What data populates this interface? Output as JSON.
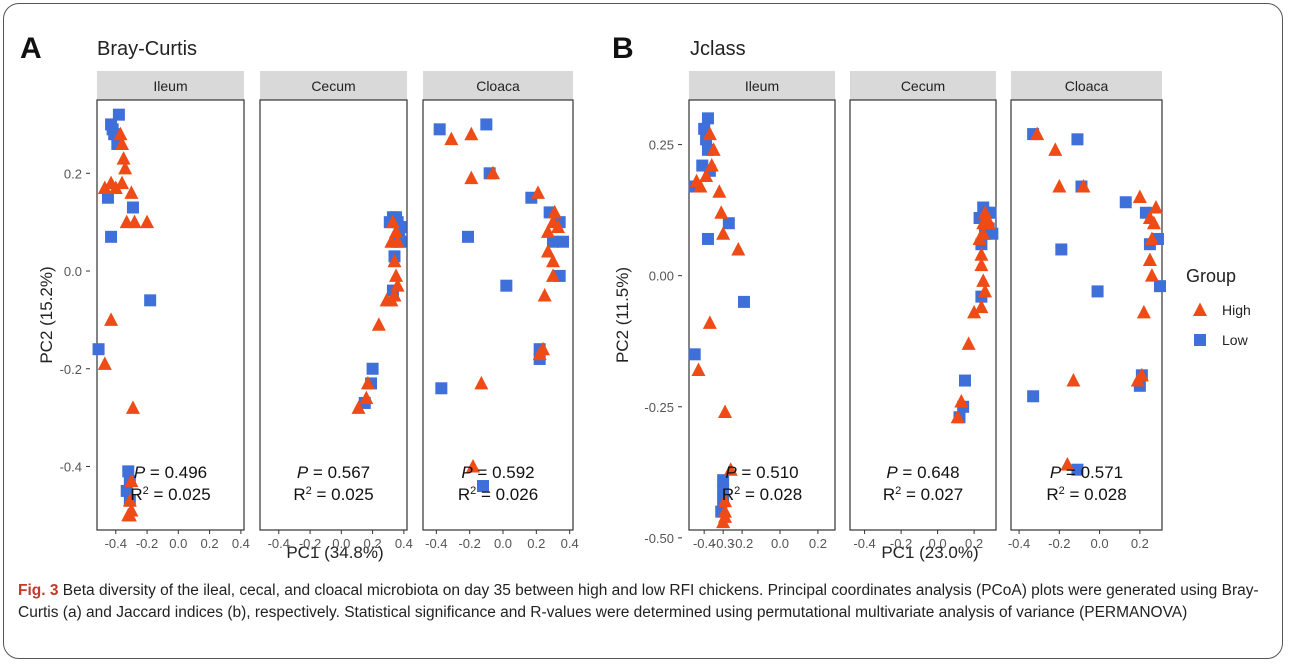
{
  "figure": {
    "caption_label": "Fig. 3",
    "caption_text": " Beta diversity of the ileal, cecal, and cloacal microbiota on day 35 between high and low RFI chickens. Principal coordinates analysis (PCoA) plots were generated using Bray-Curtis (a) and Jaccard indices (b), respectively. Statistical significance and R-values were determined using permutational multivariate analysis of variance (PERMANOVA)"
  },
  "colors": {
    "high": "#ee4b16",
    "low": "#3f6fd8",
    "strip": "#d9d9d9"
  },
  "legend": {
    "title": "Group",
    "items": [
      {
        "label": "High",
        "shape": "triangle",
        "color": "#ee4b16"
      },
      {
        "label": "Low",
        "shape": "square",
        "color": "#3f6fd8"
      }
    ]
  },
  "chart_data": [
    {
      "type": "scatter",
      "panel_letter": "A",
      "title": "Bray-Curtis",
      "xlabel": "PC1 (34.8%)",
      "ylabel": "PC2 (15.2%)",
      "ylim": [
        -0.53,
        0.35
      ],
      "yticks": [
        0.2,
        0.0,
        -0.2,
        -0.4
      ],
      "ytick_labels": [
        "0.2",
        "0.0",
        "-0.2",
        "-0.4"
      ],
      "grid": false,
      "facets": [
        {
          "name": "Ileum",
          "xlim": [
            -0.52,
            0.42
          ],
          "xticks": [
            -0.4,
            -0.2,
            0.0,
            0.2,
            0.4
          ],
          "xtick_labels": [
            "-0.4",
            "-0.2",
            "0.0",
            "0.2",
            "0.4"
          ],
          "p_value": "0.496",
          "r2": "0.025",
          "high": [
            [
              -0.37,
              0.28
            ],
            [
              -0.36,
              0.26
            ],
            [
              -0.35,
              0.23
            ],
            [
              -0.34,
              0.21
            ],
            [
              -0.36,
              0.18
            ],
            [
              -0.43,
              0.18
            ],
            [
              -0.47,
              0.17
            ],
            [
              -0.4,
              0.17
            ],
            [
              -0.3,
              0.16
            ],
            [
              -0.28,
              0.1
            ],
            [
              -0.2,
              0.1
            ],
            [
              -0.33,
              0.1
            ],
            [
              -0.43,
              -0.1
            ],
            [
              -0.47,
              -0.19
            ],
            [
              -0.29,
              -0.28
            ],
            [
              -0.3,
              -0.43
            ],
            [
              -0.31,
              -0.47
            ],
            [
              -0.3,
              -0.49
            ],
            [
              -0.31,
              -0.5
            ],
            [
              -0.32,
              -0.5
            ]
          ],
          "low": [
            [
              -0.38,
              0.32
            ],
            [
              -0.43,
              0.3
            ],
            [
              -0.42,
              0.29
            ],
            [
              -0.41,
              0.28
            ],
            [
              -0.39,
              0.26
            ],
            [
              -0.45,
              0.15
            ],
            [
              -0.29,
              0.13
            ],
            [
              -0.43,
              0.07
            ],
            [
              -0.18,
              -0.06
            ],
            [
              -0.51,
              -0.16
            ],
            [
              -0.32,
              -0.41
            ],
            [
              -0.31,
              -0.43
            ],
            [
              -0.33,
              -0.45
            ],
            [
              -0.31,
              -0.47
            ]
          ]
        },
        {
          "name": "Cecum",
          "xlim": [
            -0.52,
            0.42
          ],
          "xticks": [
            -0.4,
            -0.2,
            0.0,
            0.2,
            0.4
          ],
          "xtick_labels": [
            "-0.4",
            "-0.2",
            "0.0",
            "0.2",
            "0.4"
          ],
          "p_value": "0.567",
          "r2": "0.025",
          "high": [
            [
              0.33,
              0.1
            ],
            [
              0.35,
              0.08
            ],
            [
              0.36,
              0.06
            ],
            [
              0.32,
              0.06
            ],
            [
              0.34,
              0.02
            ],
            [
              0.35,
              -0.01
            ],
            [
              0.36,
              -0.03
            ],
            [
              0.34,
              -0.05
            ],
            [
              0.32,
              -0.06
            ],
            [
              0.29,
              -0.06
            ],
            [
              0.24,
              -0.11
            ],
            [
              0.17,
              -0.23
            ],
            [
              0.16,
              -0.26
            ],
            [
              0.11,
              -0.28
            ]
          ],
          "low": [
            [
              0.33,
              0.11
            ],
            [
              0.35,
              0.11
            ],
            [
              0.36,
              0.1
            ],
            [
              0.31,
              0.1
            ],
            [
              0.38,
              0.09
            ],
            [
              0.37,
              0.07
            ],
            [
              0.38,
              0.06
            ],
            [
              0.34,
              0.03
            ],
            [
              0.33,
              -0.04
            ],
            [
              0.2,
              -0.2
            ],
            [
              0.19,
              -0.23
            ],
            [
              0.15,
              -0.27
            ]
          ]
        },
        {
          "name": "Cloaca",
          "xlim": [
            -0.48,
            0.42
          ],
          "xticks": [
            -0.4,
            -0.2,
            0.0,
            0.2,
            0.4
          ],
          "xtick_labels": [
            "-0.4",
            "-0.2",
            "0.0",
            "0.2",
            "0.4"
          ],
          "p_value": "0.592",
          "r2": "0.026",
          "high": [
            [
              -0.31,
              0.27
            ],
            [
              -0.19,
              0.28
            ],
            [
              -0.19,
              0.19
            ],
            [
              -0.06,
              0.2
            ],
            [
              0.21,
              0.16
            ],
            [
              0.31,
              0.12
            ],
            [
              0.3,
              0.1
            ],
            [
              0.33,
              0.09
            ],
            [
              0.27,
              0.08
            ],
            [
              0.27,
              0.04
            ],
            [
              0.3,
              0.02
            ],
            [
              0.3,
              -0.01
            ],
            [
              0.25,
              -0.05
            ],
            [
              0.24,
              -0.16
            ],
            [
              0.22,
              -0.17
            ],
            [
              -0.13,
              -0.23
            ],
            [
              -0.18,
              -0.4
            ]
          ],
          "low": [
            [
              -0.38,
              0.29
            ],
            [
              -0.1,
              0.3
            ],
            [
              -0.08,
              0.2
            ],
            [
              0.17,
              0.15
            ],
            [
              0.28,
              0.12
            ],
            [
              0.34,
              0.1
            ],
            [
              0.3,
              0.06
            ],
            [
              0.36,
              0.06
            ],
            [
              0.34,
              -0.01
            ],
            [
              0.02,
              -0.03
            ],
            [
              -0.21,
              0.07
            ],
            [
              0.22,
              -0.16
            ],
            [
              0.22,
              -0.18
            ],
            [
              -0.37,
              -0.24
            ],
            [
              -0.12,
              -0.44
            ]
          ]
        }
      ]
    },
    {
      "type": "scatter",
      "panel_letter": "B",
      "title": "Jclass",
      "xlabel": "PC1 (23.0%)",
      "ylabel": "PC2 (11.5%)",
      "ylim": [
        -0.485,
        0.335
      ],
      "yticks": [
        0.25,
        0.0,
        -0.25,
        -0.5
      ],
      "ytick_labels": [
        "0.25",
        "0.00",
        "-0.25",
        "-0.50"
      ],
      "grid": false,
      "facets": [
        {
          "name": "Ileum",
          "xlim": [
            -0.48,
            0.29
          ],
          "xticks": [
            -0.4,
            -0.3,
            -0.2,
            0.0,
            0.2
          ],
          "xtick_labels": [
            "-0.4",
            "-0.3",
            "-0.2",
            "0.0",
            "0.2"
          ],
          "p_value": "0.510",
          "r2": "0.028",
          "high": [
            [
              -0.37,
              0.27
            ],
            [
              -0.35,
              0.24
            ],
            [
              -0.36,
              0.21
            ],
            [
              -0.39,
              0.19
            ],
            [
              -0.42,
              0.17
            ],
            [
              -0.32,
              0.16
            ],
            [
              -0.44,
              0.18
            ],
            [
              -0.31,
              0.12
            ],
            [
              -0.3,
              0.08
            ],
            [
              -0.22,
              0.05
            ],
            [
              -0.37,
              -0.09
            ],
            [
              -0.43,
              -0.18
            ],
            [
              -0.29,
              -0.26
            ],
            [
              -0.26,
              -0.37
            ],
            [
              -0.29,
              -0.43
            ],
            [
              -0.29,
              -0.45
            ],
            [
              -0.29,
              -0.46
            ],
            [
              -0.3,
              -0.47
            ]
          ],
          "low": [
            [
              -0.38,
              0.3
            ],
            [
              -0.4,
              0.28
            ],
            [
              -0.39,
              0.26
            ],
            [
              -0.38,
              0.24
            ],
            [
              -0.41,
              0.21
            ],
            [
              -0.37,
              0.2
            ],
            [
              -0.45,
              0.17
            ],
            [
              -0.27,
              0.1
            ],
            [
              -0.38,
              0.07
            ],
            [
              -0.19,
              -0.05
            ],
            [
              -0.45,
              -0.15
            ],
            [
              -0.3,
              -0.39
            ],
            [
              -0.3,
              -0.41
            ],
            [
              -0.3,
              -0.43
            ],
            [
              -0.31,
              -0.45
            ]
          ]
        },
        {
          "name": "Cecum",
          "xlim": [
            -0.48,
            0.32
          ],
          "xticks": [
            -0.4,
            -0.2,
            0.0,
            0.2
          ],
          "xtick_labels": [
            "-0.4",
            "-0.2",
            "0.0",
            "0.2"
          ],
          "p_value": "0.648",
          "r2": "0.027",
          "high": [
            [
              0.25,
              0.1
            ],
            [
              0.26,
              0.12
            ],
            [
              0.27,
              0.11
            ],
            [
              0.28,
              0.1
            ],
            [
              0.25,
              0.08
            ],
            [
              0.23,
              0.07
            ],
            [
              0.24,
              0.04
            ],
            [
              0.24,
              0.02
            ],
            [
              0.25,
              -0.01
            ],
            [
              0.26,
              -0.03
            ],
            [
              0.24,
              -0.06
            ],
            [
              0.2,
              -0.07
            ],
            [
              0.17,
              -0.13
            ],
            [
              0.13,
              -0.24
            ],
            [
              0.11,
              -0.27
            ]
          ],
          "low": [
            [
              0.25,
              0.13
            ],
            [
              0.27,
              0.12
            ],
            [
              0.29,
              0.12
            ],
            [
              0.23,
              0.11
            ],
            [
              0.28,
              0.09
            ],
            [
              0.26,
              0.08
            ],
            [
              0.3,
              0.08
            ],
            [
              0.24,
              0.06
            ],
            [
              0.24,
              -0.04
            ],
            [
              0.15,
              -0.2
            ],
            [
              0.14,
              -0.25
            ],
            [
              0.12,
              -0.27
            ]
          ]
        },
        {
          "name": "Cloaca",
          "xlim": [
            -0.44,
            0.31
          ],
          "xticks": [
            -0.4,
            -0.2,
            0.0,
            0.2
          ],
          "xtick_labels": [
            "-0.4",
            "-0.2",
            "0.0",
            "0.2"
          ],
          "p_value": "0.571",
          "r2": "0.028",
          "high": [
            [
              -0.31,
              0.27
            ],
            [
              -0.22,
              0.24
            ],
            [
              -0.2,
              0.17
            ],
            [
              -0.08,
              0.17
            ],
            [
              0.2,
              0.15
            ],
            [
              0.25,
              0.11
            ],
            [
              0.27,
              0.1
            ],
            [
              0.28,
              0.13
            ],
            [
              0.26,
              0.07
            ],
            [
              0.25,
              0.03
            ],
            [
              0.26,
              0.0
            ],
            [
              0.22,
              -0.07
            ],
            [
              0.21,
              -0.19
            ],
            [
              0.19,
              -0.2
            ],
            [
              -0.13,
              -0.2
            ],
            [
              -0.16,
              -0.36
            ]
          ],
          "low": [
            [
              -0.33,
              0.27
            ],
            [
              -0.11,
              0.26
            ],
            [
              -0.09,
              0.17
            ],
            [
              0.13,
              0.14
            ],
            [
              0.23,
              0.12
            ],
            [
              0.29,
              0.07
            ],
            [
              0.25,
              0.06
            ],
            [
              0.3,
              -0.02
            ],
            [
              -0.01,
              -0.03
            ],
            [
              -0.19,
              0.05
            ],
            [
              0.21,
              -0.19
            ],
            [
              0.2,
              -0.21
            ],
            [
              -0.33,
              -0.23
            ],
            [
              -0.11,
              -0.37
            ]
          ]
        }
      ]
    }
  ]
}
